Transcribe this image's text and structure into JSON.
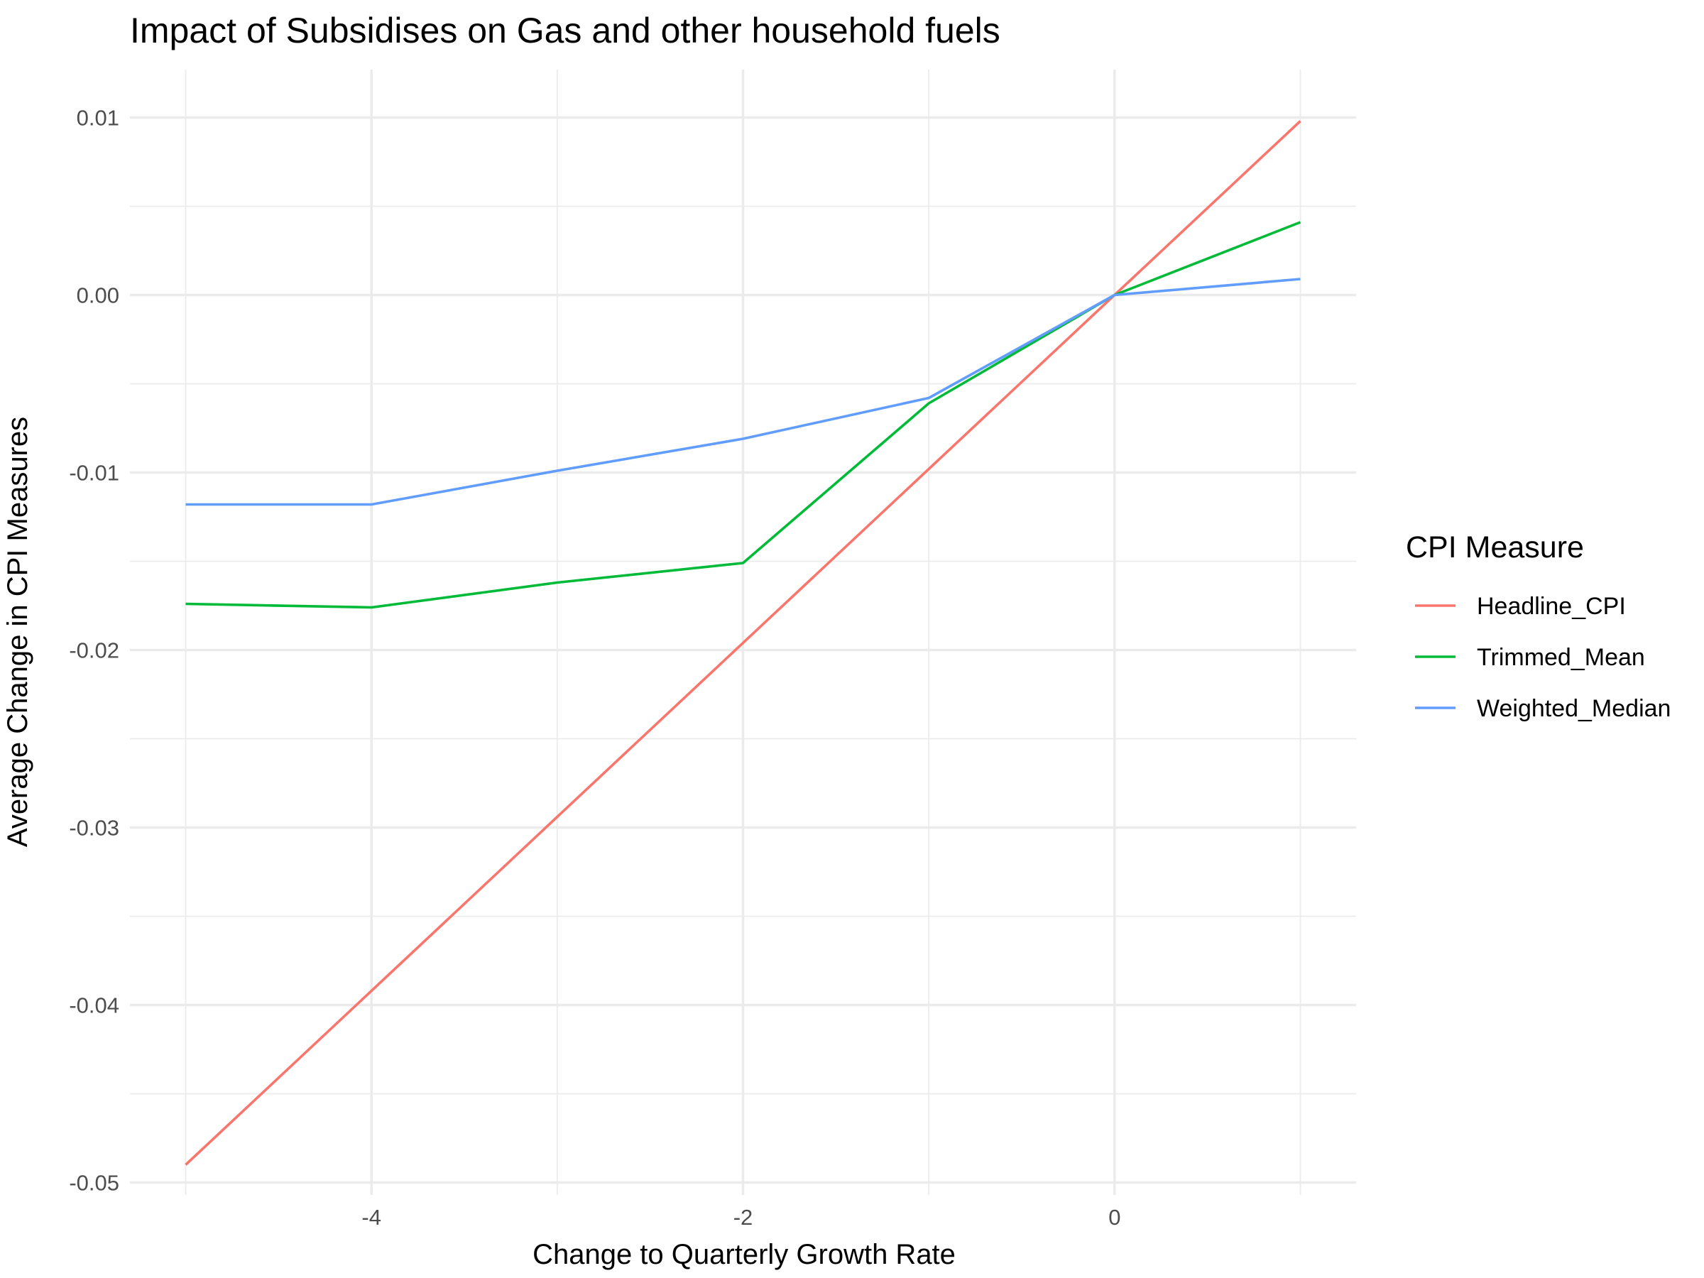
{
  "chart_data": {
    "type": "line",
    "title": "Impact of Subsidises on Gas and other household fuels",
    "xlabel": "Change to Quarterly Growth Rate",
    "ylabel": "Average Change in CPI Measures",
    "x": [
      -5,
      -4,
      -3,
      -2,
      -1,
      0,
      1
    ],
    "xlim": [
      -5.3,
      1.3
    ],
    "ylim": [
      -0.0507,
      0.0127
    ],
    "x_ticks": [
      -4,
      -2,
      0
    ],
    "x_minor_ticks": [
      -5,
      -3,
      -1,
      1
    ],
    "y_ticks": [
      -0.05,
      -0.04,
      -0.03,
      -0.02,
      -0.01,
      0.0,
      0.01
    ],
    "y_minor_ticks": [
      -0.045,
      -0.035,
      -0.025,
      -0.015,
      -0.005,
      0.005
    ],
    "x_tick_labels": [
      "-4",
      "-2",
      "0"
    ],
    "y_tick_labels": [
      "-0.05",
      "-0.04",
      "-0.03",
      "-0.02",
      "-0.01",
      "0.00",
      "0.01"
    ],
    "grid": true,
    "legend": {
      "title": "CPI Measure",
      "position": "right"
    },
    "series": [
      {
        "name": "Headline_CPI",
        "color": "#F8766D",
        "values": [
          -0.049,
          -0.0392,
          -0.0294,
          -0.0196,
          -0.0098,
          0.0,
          0.0098
        ]
      },
      {
        "name": "Trimmed_Mean",
        "color": "#00BA38",
        "values": [
          -0.0174,
          -0.0176,
          -0.0162,
          -0.0151,
          -0.0061,
          0.0,
          0.0041
        ]
      },
      {
        "name": "Weighted_Median",
        "color": "#619CFF",
        "values": [
          -0.0118,
          -0.0118,
          -0.0099,
          -0.0081,
          -0.0058,
          0.0,
          0.0009
        ]
      }
    ]
  }
}
